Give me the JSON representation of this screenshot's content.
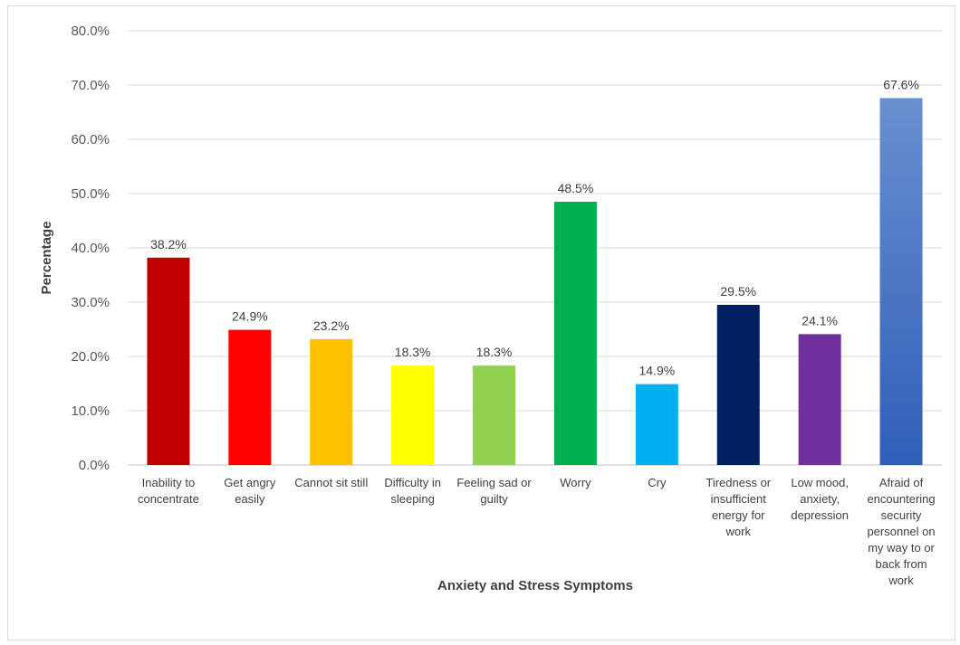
{
  "chart_data": {
    "type": "bar",
    "title": "",
    "xlabel": "Anxiety and Stress Symptoms",
    "ylabel": "Percentage",
    "ylim": [
      0,
      80
    ],
    "yticks": [
      "0.0%",
      "10.0%",
      "20.0%",
      "30.0%",
      "40.0%",
      "50.0%",
      "60.0%",
      "70.0%",
      "80.0%"
    ],
    "grid": true,
    "categories": [
      [
        "Inability to",
        "concentrate"
      ],
      [
        "Get angry",
        "easily"
      ],
      [
        "Cannot sit still"
      ],
      [
        "Difficulty in",
        "sleeping"
      ],
      [
        "Feeling sad or",
        "guilty"
      ],
      [
        "Worry"
      ],
      [
        "Cry"
      ],
      [
        "Tiredness or",
        "insufficient",
        "energy for",
        "work"
      ],
      [
        "Low mood,",
        "anxiety,",
        "depression"
      ],
      [
        "Afraid of",
        "encountering",
        "security",
        "personnel on",
        "my way to or",
        "back from",
        "work"
      ]
    ],
    "values": [
      38.2,
      24.9,
      23.2,
      18.3,
      18.3,
      48.5,
      14.9,
      29.5,
      24.1,
      67.6
    ],
    "value_labels": [
      "38.2%",
      "24.9%",
      "23.2%",
      "18.3%",
      "18.3%",
      "48.5%",
      "14.9%",
      "29.5%",
      "24.1%",
      "67.6%"
    ],
    "colors": [
      "#c00000",
      "#ff0000",
      "#ffc000",
      "#ffff00",
      "#92d050",
      "#00b050",
      "#00b0f0",
      "#002060",
      "#7030a0",
      "#4472c4"
    ]
  }
}
